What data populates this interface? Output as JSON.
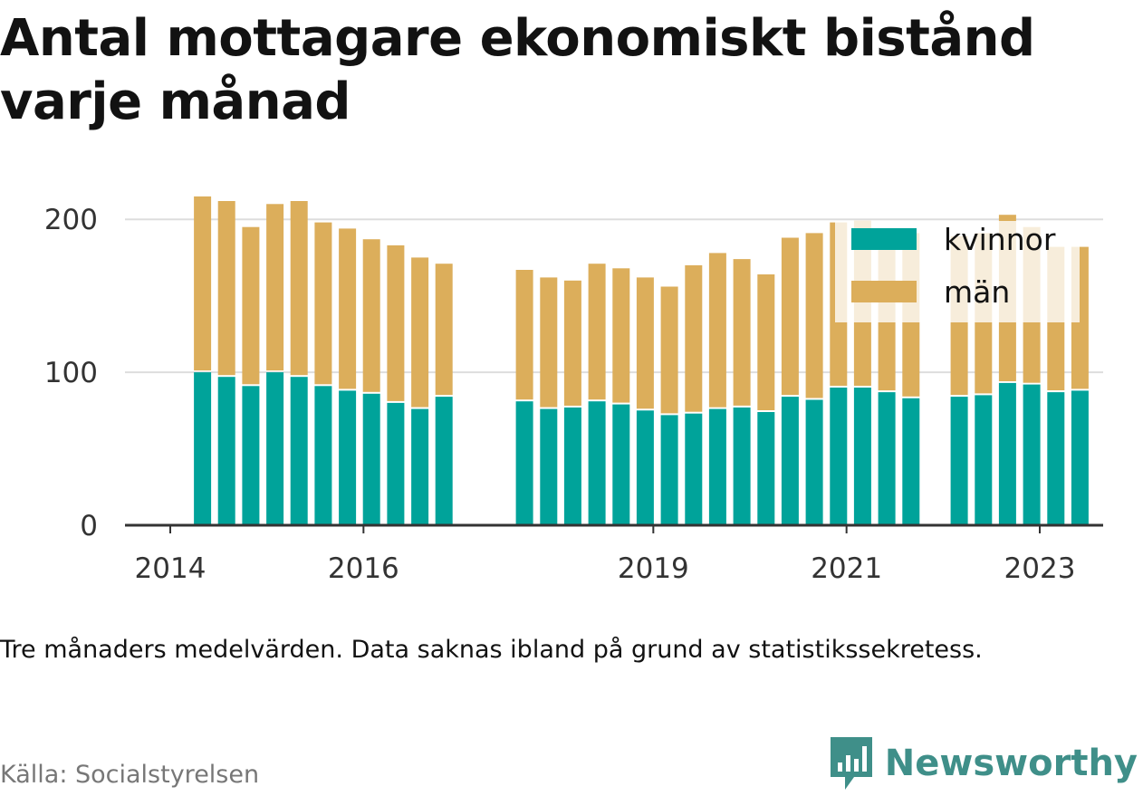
{
  "title": "Antal mottagare ekonomiskt bistånd varje månad",
  "note": "Tre månaders medelvärden. Data saknas ibland på grund av statistikssekretess.",
  "source": "Källa: Socialstyrelsen",
  "brand": "Newsworthy",
  "colors": {
    "kvinnor": "#00a39a",
    "man": "#dcae5b",
    "grid": "#dddddd",
    "axis": "#333333",
    "text": "#333333",
    "brand": "#3f8f89"
  },
  "chart_data": {
    "type": "bar",
    "stacked": true,
    "x": [
      "2014-05",
      "2014-08",
      "2014-11",
      "2015-02",
      "2015-05",
      "2015-08",
      "2015-11",
      "2016-02",
      "2016-05",
      "2016-08",
      "2016-11",
      "2017-09",
      "2017-12",
      "2018-03",
      "2018-06",
      "2018-09",
      "2018-12",
      "2019-03",
      "2019-06",
      "2019-09",
      "2019-12",
      "2020-03",
      "2020-06",
      "2020-09",
      "2020-12",
      "2021-03",
      "2021-06",
      "2021-09",
      "2022-03",
      "2022-06",
      "2022-09",
      "2022-12",
      "2023-03",
      "2023-06"
    ],
    "series": [
      {
        "name": "kvinnor",
        "values": [
          100,
          97,
          91,
          100,
          97,
          91,
          88,
          86,
          80,
          76,
          84,
          81,
          76,
          77,
          81,
          79,
          75,
          72,
          73,
          76,
          77,
          74,
          84,
          82,
          90,
          90,
          87,
          83,
          84,
          85,
          93,
          92,
          87,
          88
        ]
      },
      {
        "name": "män",
        "values": [
          115,
          115,
          104,
          110,
          115,
          107,
          106,
          101,
          103,
          99,
          87,
          86,
          86,
          83,
          90,
          89,
          87,
          84,
          97,
          102,
          97,
          90,
          104,
          109,
          108,
          109,
          107,
          108,
          105,
          106,
          110,
          103,
          95,
          94
        ]
      }
    ],
    "xticks": [
      "2014",
      "2016",
      "2019",
      "2021",
      "2023"
    ],
    "yticks": [
      "0",
      "100",
      "200"
    ],
    "ylim": [
      0,
      225
    ],
    "legend": [
      "kvinnor",
      "män"
    ],
    "legend_position": "top-right",
    "grid": true
  }
}
